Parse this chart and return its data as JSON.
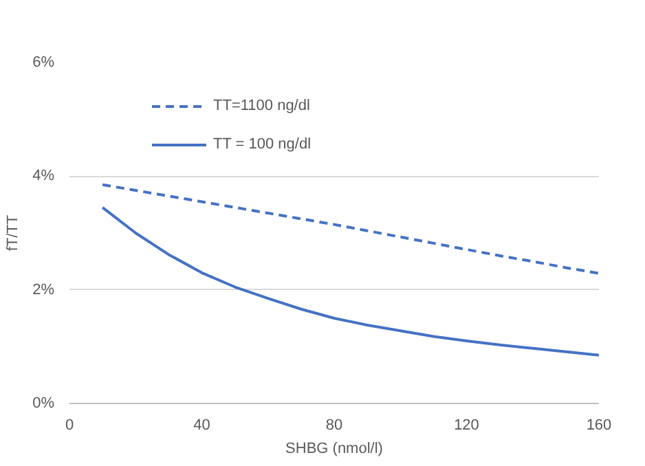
{
  "chart_data": {
    "type": "line",
    "xlabel": "SHBG (nmol/l)",
    "ylabel": "fT/TT",
    "xlim": [
      0,
      160
    ],
    "xticks": [
      0,
      40,
      80,
      120,
      160
    ],
    "ylim": [
      0,
      6
    ],
    "yticks": [
      {
        "value": 0,
        "label": "0%"
      },
      {
        "value": 2,
        "label": "2%"
      },
      {
        "value": 4,
        "label": "4%"
      },
      {
        "value": 6,
        "label": "6%"
      }
    ],
    "grid": "y",
    "legend": "top left",
    "series": [
      {
        "name": "TT=1100 ng/dl",
        "color": "#4472c4",
        "line_style": "dashed",
        "x": [
          10,
          20,
          30,
          40,
          50,
          60,
          70,
          80,
          90,
          100,
          110,
          120,
          130,
          140,
          150,
          160
        ],
        "values": [
          3.85,
          3.75,
          3.65,
          3.55,
          3.45,
          3.35,
          3.25,
          3.15,
          3.04,
          2.93,
          2.82,
          2.71,
          2.6,
          2.5,
          2.39,
          2.29
        ]
      },
      {
        "name": "TT = 100 ng/dl",
        "color": "#4472c4",
        "line_style": "solid",
        "x": [
          10,
          20,
          30,
          40,
          50,
          60,
          70,
          80,
          90,
          100,
          110,
          120,
          130,
          140,
          150,
          160
        ],
        "values": [
          3.45,
          3.0,
          2.62,
          2.3,
          2.05,
          1.85,
          1.66,
          1.5,
          1.38,
          1.28,
          1.18,
          1.1,
          1.03,
          0.97,
          0.91,
          0.85
        ]
      }
    ]
  }
}
